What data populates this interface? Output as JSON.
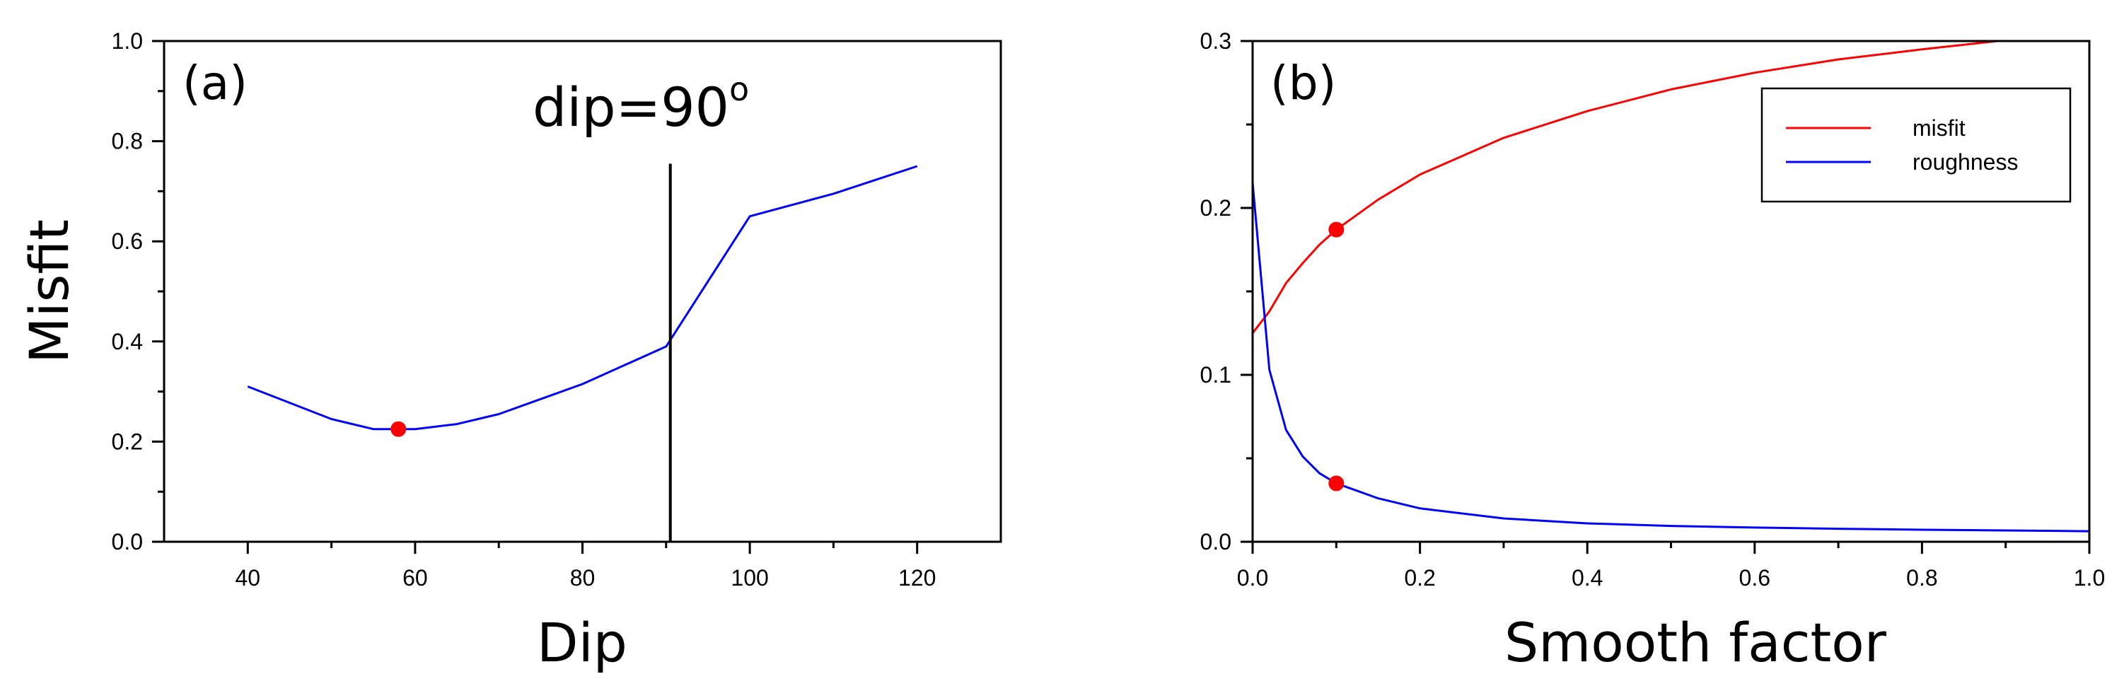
{
  "chart_data": [
    {
      "type": "line",
      "panel_label": "(a)",
      "xlabel": "Dip",
      "ylabel": "Misfit",
      "xlim": [
        30,
        130
      ],
      "ylim": [
        0,
        1.0
      ],
      "xticks": [
        40,
        60,
        80,
        100,
        120
      ],
      "xtick_labels": [
        "40",
        "60",
        "80",
        "100",
        "120"
      ],
      "yticks": [
        0,
        0.2,
        0.4,
        0.6,
        0.8,
        1.0
      ],
      "ytick_labels": [
        "0.0",
        "0.2",
        "0.4",
        "0.6",
        "0.8",
        "1.0"
      ],
      "grid": false,
      "series": [
        {
          "color": "#0000ff",
          "x": [
            40,
            50,
            55,
            60,
            65,
            70,
            80,
            90,
            100,
            110,
            120
          ],
          "y": [
            0.31,
            0.245,
            0.225,
            0.225,
            0.235,
            0.255,
            0.315,
            0.39,
            0.65,
            0.695,
            0.75
          ]
        }
      ],
      "highlight_points": [
        {
          "x": 58,
          "y": 0.225,
          "color": "#ff0000"
        }
      ],
      "vline": {
        "x": 90.5,
        "y_top": 0.755,
        "color": "#000000"
      },
      "annotation": {
        "base": "dip=90",
        "sup": "o"
      }
    },
    {
      "type": "line",
      "panel_label": "(b)",
      "xlabel": "Smooth factor",
      "ylabel": "",
      "xlim": [
        0,
        1.0
      ],
      "ylim": [
        0,
        0.3
      ],
      "xticks": [
        0,
        0.2,
        0.4,
        0.6,
        0.8,
        1.0
      ],
      "xtick_labels": [
        "0.0",
        "0.2",
        "0.4",
        "0.6",
        "0.8",
        "1.0"
      ],
      "yticks": [
        0,
        0.1,
        0.2,
        0.3
      ],
      "ytick_labels": [
        "0.0",
        "0.1",
        "0.2",
        "0.3"
      ],
      "grid": false,
      "legend_position": "top-right",
      "series": [
        {
          "name": "misfit",
          "color": "#ff0000",
          "x": [
            0,
            0.02,
            0.04,
            0.06,
            0.08,
            0.1,
            0.15,
            0.2,
            0.3,
            0.4,
            0.5,
            0.6,
            0.7,
            0.8,
            0.89
          ],
          "y": [
            0.125,
            0.138,
            0.155,
            0.167,
            0.178,
            0.187,
            0.205,
            0.22,
            0.242,
            0.258,
            0.271,
            0.281,
            0.289,
            0.295,
            0.3
          ]
        },
        {
          "name": "roughness",
          "color": "#0000ff",
          "x": [
            0,
            0.02,
            0.04,
            0.06,
            0.08,
            0.1,
            0.15,
            0.2,
            0.3,
            0.4,
            0.5,
            0.6,
            0.7,
            0.8,
            0.9,
            1.0
          ],
          "y": [
            0.215,
            0.103,
            0.067,
            0.051,
            0.041,
            0.035,
            0.026,
            0.02,
            0.014,
            0.011,
            0.0095,
            0.0085,
            0.0078,
            0.0072,
            0.0068,
            0.0063
          ]
        }
      ],
      "highlight_points": [
        {
          "x": 0.1,
          "y": 0.187,
          "color": "#ff0000"
        },
        {
          "x": 0.1,
          "y": 0.035,
          "color": "#ff0000"
        }
      ]
    }
  ]
}
